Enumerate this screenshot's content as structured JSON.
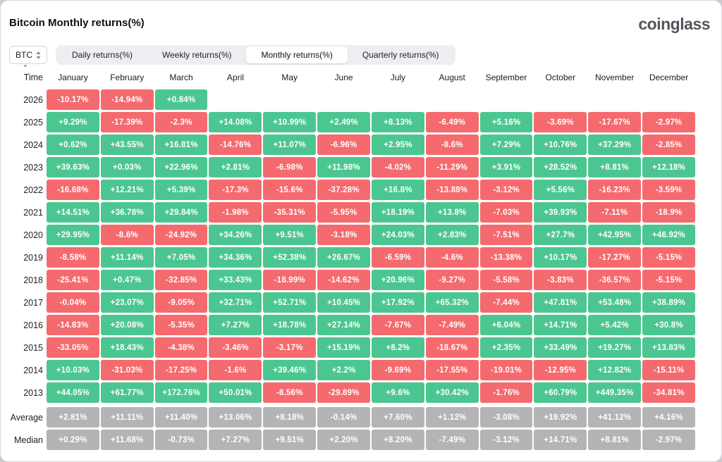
{
  "header": {
    "title": "Bitcoin Monthly returns(%)",
    "logo": "coinglass"
  },
  "controls": {
    "symbol": {
      "value": "BTC"
    },
    "tabs": [
      {
        "label": "Daily returns(%)",
        "active": false
      },
      {
        "label": "Weekly returns(%)",
        "active": false
      },
      {
        "label": "Monthly returns(%)",
        "active": true
      },
      {
        "label": "Quarterly returns(%)",
        "active": false
      }
    ]
  },
  "colors": {
    "positive": "#4cc690",
    "negative": "#f56a6e",
    "neutral": "#b4b4b6"
  },
  "table": {
    "time_header": "Time",
    "months": [
      "January",
      "February",
      "March",
      "April",
      "May",
      "June",
      "July",
      "August",
      "September",
      "October",
      "November",
      "December"
    ],
    "rows": [
      {
        "label": "2026",
        "kind": "year",
        "cells": [
          "-10.17%",
          "-14.94%",
          "+0.84%",
          null,
          null,
          null,
          null,
          null,
          null,
          null,
          null,
          null
        ]
      },
      {
        "label": "2025",
        "kind": "year",
        "cells": [
          "+9.29%",
          "-17.39%",
          "-2.3%",
          "+14.08%",
          "+10.99%",
          "+2.49%",
          "+8.13%",
          "-6.49%",
          "+5.16%",
          "-3.69%",
          "-17.67%",
          "-2.97%"
        ]
      },
      {
        "label": "2024",
        "kind": "year",
        "cells": [
          "+0.62%",
          "+43.55%",
          "+16.81%",
          "-14.76%",
          "+11.07%",
          "-6.96%",
          "+2.95%",
          "-8.6%",
          "+7.29%",
          "+10.76%",
          "+37.29%",
          "-2.85%"
        ]
      },
      {
        "label": "2023",
        "kind": "year",
        "cells": [
          "+39.63%",
          "+0.03%",
          "+22.96%",
          "+2.81%",
          "-6.98%",
          "+11.98%",
          "-4.02%",
          "-11.29%",
          "+3.91%",
          "+28.52%",
          "+8.81%",
          "+12.18%"
        ]
      },
      {
        "label": "2022",
        "kind": "year",
        "cells": [
          "-16.68%",
          "+12.21%",
          "+5.39%",
          "-17.3%",
          "-15.6%",
          "-37.28%",
          "+16.8%",
          "-13.88%",
          "-3.12%",
          "+5.56%",
          "-16.23%",
          "-3.59%"
        ]
      },
      {
        "label": "2021",
        "kind": "year",
        "cells": [
          "+14.51%",
          "+36.78%",
          "+29.84%",
          "-1.98%",
          "-35.31%",
          "-5.95%",
          "+18.19%",
          "+13.8%",
          "-7.03%",
          "+39.93%",
          "-7.11%",
          "-18.9%"
        ]
      },
      {
        "label": "2020",
        "kind": "year",
        "cells": [
          "+29.95%",
          "-8.6%",
          "-24.92%",
          "+34.26%",
          "+9.51%",
          "-3.18%",
          "+24.03%",
          "+2.83%",
          "-7.51%",
          "+27.7%",
          "+42.95%",
          "+46.92%"
        ]
      },
      {
        "label": "2019",
        "kind": "year",
        "cells": [
          "-8.58%",
          "+11.14%",
          "+7.05%",
          "+34.36%",
          "+52.38%",
          "+26.67%",
          "-6.59%",
          "-4.6%",
          "-13.38%",
          "+10.17%",
          "-17.27%",
          "-5.15%"
        ]
      },
      {
        "label": "2018",
        "kind": "year",
        "cells": [
          "-25.41%",
          "+0.47%",
          "-32.85%",
          "+33.43%",
          "-18.99%",
          "-14.62%",
          "+20.96%",
          "-9.27%",
          "-5.58%",
          "-3.83%",
          "-36.57%",
          "-5.15%"
        ]
      },
      {
        "label": "2017",
        "kind": "year",
        "cells": [
          "-0.04%",
          "+23.07%",
          "-9.05%",
          "+32.71%",
          "+52.71%",
          "+10.45%",
          "+17.92%",
          "+65.32%",
          "-7.44%",
          "+47.81%",
          "+53.48%",
          "+38.89%"
        ]
      },
      {
        "label": "2016",
        "kind": "year",
        "cells": [
          "-14.83%",
          "+20.08%",
          "-5.35%",
          "+7.27%",
          "+18.78%",
          "+27.14%",
          "-7.67%",
          "-7.49%",
          "+6.04%",
          "+14.71%",
          "+5.42%",
          "+30.8%"
        ]
      },
      {
        "label": "2015",
        "kind": "year",
        "cells": [
          "-33.05%",
          "+18.43%",
          "-4.38%",
          "-3.46%",
          "-3.17%",
          "+15.19%",
          "+8.2%",
          "-18.67%",
          "+2.35%",
          "+33.49%",
          "+19.27%",
          "+13.83%"
        ]
      },
      {
        "label": "2014",
        "kind": "year",
        "cells": [
          "+10.03%",
          "-31.03%",
          "-17.25%",
          "-1.6%",
          "+39.46%",
          "+2.2%",
          "-9.69%",
          "-17.55%",
          "-19.01%",
          "-12.95%",
          "+12.82%",
          "-15.11%"
        ]
      },
      {
        "label": "2013",
        "kind": "year",
        "cells": [
          "+44.05%",
          "+61.77%",
          "+172.76%",
          "+50.01%",
          "-8.56%",
          "-29.89%",
          "+9.6%",
          "+30.42%",
          "-1.76%",
          "+60.79%",
          "+449.35%",
          "-34.81%"
        ]
      },
      {
        "label": "Average",
        "kind": "stat",
        "cells": [
          "+2.81%",
          "+11.11%",
          "+11.40%",
          "+13.06%",
          "+8.18%",
          "-0.14%",
          "+7.60%",
          "+1.12%",
          "-3.08%",
          "+19.92%",
          "+41.12%",
          "+4.16%"
        ]
      },
      {
        "label": "Median",
        "kind": "stat",
        "cells": [
          "+0.29%",
          "+11.68%",
          "-0.73%",
          "+7.27%",
          "+9.51%",
          "+2.20%",
          "+8.20%",
          "-7.49%",
          "-3.12%",
          "+14.71%",
          "+8.81%",
          "-2.97%"
        ]
      }
    ]
  }
}
